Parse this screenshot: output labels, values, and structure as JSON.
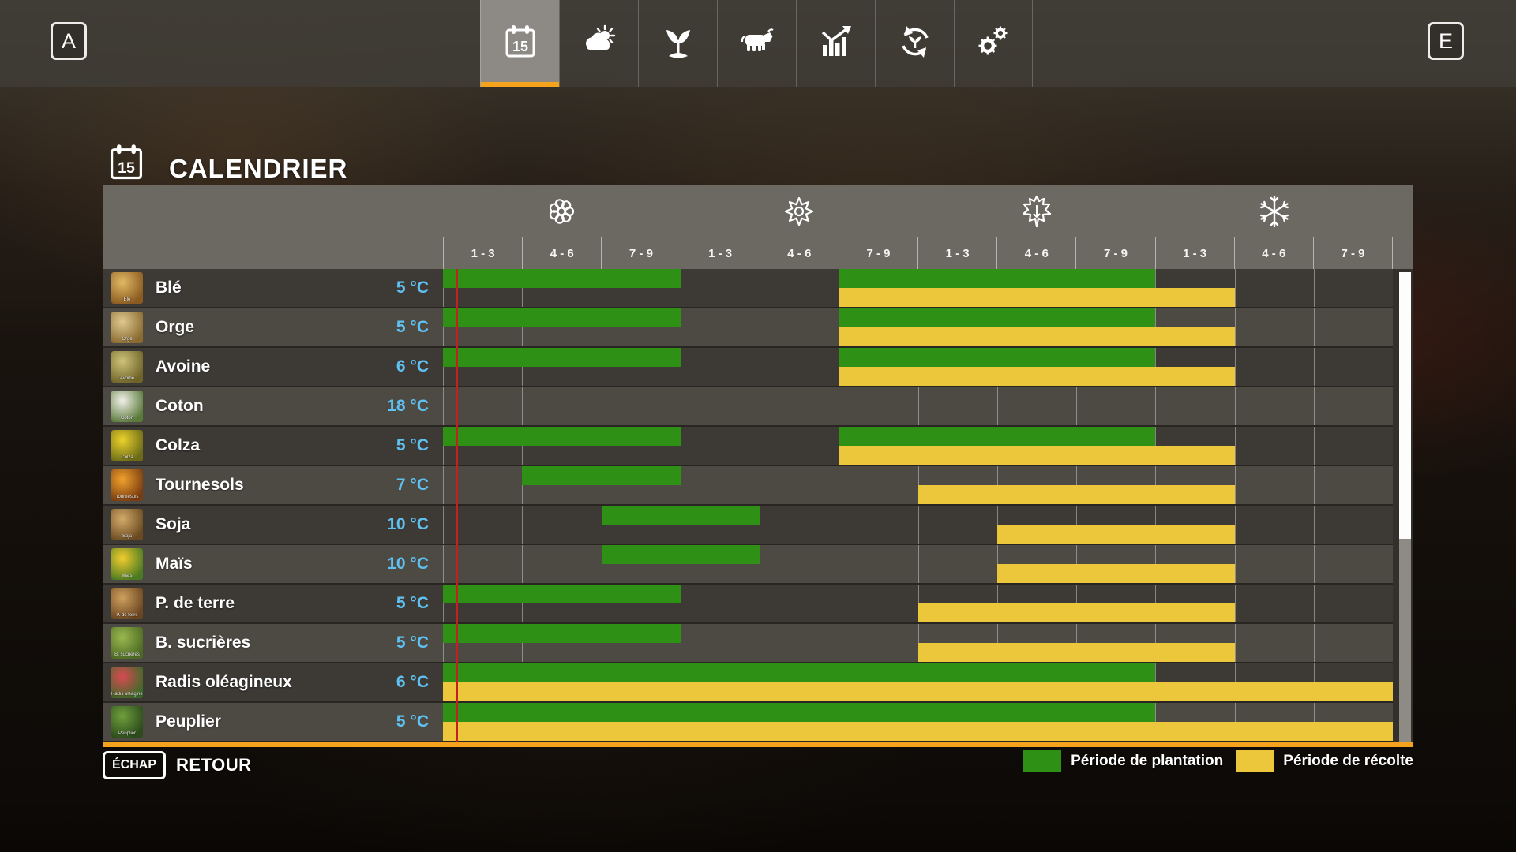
{
  "top_bar": {
    "left_key_hint": "A",
    "right_key_hint": "E",
    "tabs": [
      {
        "id": "calendar",
        "icon": "calendar-icon",
        "active": true
      },
      {
        "id": "weather",
        "icon": "weather-icon",
        "active": false
      },
      {
        "id": "crops",
        "icon": "crops-icon",
        "active": false
      },
      {
        "id": "animals",
        "icon": "animals-icon",
        "active": false
      },
      {
        "id": "statistics",
        "icon": "statistics-icon",
        "active": false
      },
      {
        "id": "crop-rotation",
        "icon": "rotation-icon",
        "active": false
      },
      {
        "id": "settings",
        "icon": "settings-icon",
        "active": false
      }
    ]
  },
  "page": {
    "title": "CALENDRIER",
    "title_icon": "calendar-icon"
  },
  "calendar": {
    "seasons": [
      {
        "id": "spring",
        "icon": "spring-flower-icon"
      },
      {
        "id": "summer",
        "icon": "summer-sun-icon"
      },
      {
        "id": "autumn",
        "icon": "autumn-leaf-icon"
      },
      {
        "id": "winter",
        "icon": "winter-snowflake-icon"
      }
    ],
    "period_labels": [
      "1 - 3",
      "4 - 6",
      "7 - 9",
      "1 - 3",
      "4 - 6",
      "7 - 9",
      "1 - 3",
      "4 - 6",
      "7 - 9",
      "1 - 3",
      "4 - 6",
      "7 - 9"
    ],
    "rows": [
      {
        "name": "Blé",
        "temp": "5 °C",
        "icon": "wheat-icon",
        "icon_colors": [
          "#e0b964",
          "#8a5a20"
        ],
        "plant": [
          [
            1,
            3
          ],
          [
            6,
            9
          ]
        ],
        "harvest": [
          [
            6,
            10
          ]
        ]
      },
      {
        "name": "Orge",
        "temp": "5 °C",
        "icon": "barley-icon",
        "icon_colors": [
          "#ddc98f",
          "#8a6a30"
        ],
        "plant": [
          [
            1,
            3
          ],
          [
            6,
            9
          ]
        ],
        "harvest": [
          [
            6,
            10
          ]
        ]
      },
      {
        "name": "Avoine",
        "temp": "6 °C",
        "icon": "oat-icon",
        "icon_colors": [
          "#cfc27a",
          "#6f6428"
        ],
        "plant": [
          [
            1,
            3
          ],
          [
            6,
            9
          ]
        ],
        "harvest": [
          [
            6,
            10
          ]
        ]
      },
      {
        "name": "Coton",
        "temp": "18 °C",
        "icon": "cotton-icon",
        "icon_colors": [
          "#f2f0ea",
          "#5a7a3a"
        ],
        "plant": [],
        "harvest": []
      },
      {
        "name": "Colza",
        "temp": "5 °C",
        "icon": "canola-icon",
        "icon_colors": [
          "#ecd22a",
          "#6a6a18"
        ],
        "plant": [
          [
            1,
            3
          ],
          [
            6,
            9
          ]
        ],
        "harvest": [
          [
            6,
            10
          ]
        ]
      },
      {
        "name": "Tournesols",
        "temp": "7 °C",
        "icon": "sunflower-icon",
        "icon_colors": [
          "#f0a12c",
          "#7a3c10"
        ],
        "plant": [
          [
            2,
            3
          ]
        ],
        "harvest": [
          [
            7,
            10
          ]
        ]
      },
      {
        "name": "Soja",
        "temp": "10 °C",
        "icon": "soybean-icon",
        "icon_colors": [
          "#d2aa6a",
          "#6a4a20"
        ],
        "plant": [
          [
            3,
            4
          ]
        ],
        "harvest": [
          [
            8,
            10
          ]
        ]
      },
      {
        "name": "Maïs",
        "temp": "10 °C",
        "icon": "corn-icon",
        "icon_colors": [
          "#f2cc2e",
          "#4a7a22"
        ],
        "plant": [
          [
            3,
            4
          ]
        ],
        "harvest": [
          [
            8,
            10
          ]
        ]
      },
      {
        "name": "P. de terre",
        "temp": "5 °C",
        "icon": "potato-icon",
        "icon_colors": [
          "#cfa05e",
          "#6a4520"
        ],
        "plant": [
          [
            1,
            3
          ]
        ],
        "harvest": [
          [
            7,
            10
          ]
        ]
      },
      {
        "name": "B. sucrières",
        "temp": "5 °C",
        "icon": "sugarbeet-icon",
        "icon_colors": [
          "#9ab84e",
          "#4c6a24"
        ],
        "plant": [
          [
            1,
            3
          ]
        ],
        "harvest": [
          [
            7,
            10
          ]
        ]
      },
      {
        "name": "Radis oléagineux",
        "temp": "6 °C",
        "icon": "oilradish-icon",
        "icon_colors": [
          "#d84a52",
          "#3e6a28"
        ],
        "plant": [
          [
            1,
            9
          ]
        ],
        "harvest": [
          [
            1,
            12
          ]
        ]
      },
      {
        "name": "Peuplier",
        "temp": "5 °C",
        "icon": "poplar-icon",
        "icon_colors": [
          "#6fa03c",
          "#2c4a1c"
        ],
        "plant": [
          [
            1,
            9
          ]
        ],
        "harvest": [
          [
            1,
            12
          ]
        ]
      }
    ],
    "marker": {
      "color": "#c32020"
    }
  },
  "legend": [
    {
      "id": "plantation",
      "label": "Période de plantation",
      "color": "#2e9014"
    },
    {
      "id": "recolte",
      "label": "Période de récolte",
      "color": "#ecc73c"
    }
  ],
  "footer": {
    "key_hint": "ÉCHAP",
    "label": "RETOUR"
  },
  "colors": {
    "plantation_green": "#2e9014",
    "recolte_yellow": "#ecc73c",
    "accent_orange": "#f5a31d",
    "temperature_blue": "#5ec1f2",
    "marker_red": "#c32020"
  }
}
